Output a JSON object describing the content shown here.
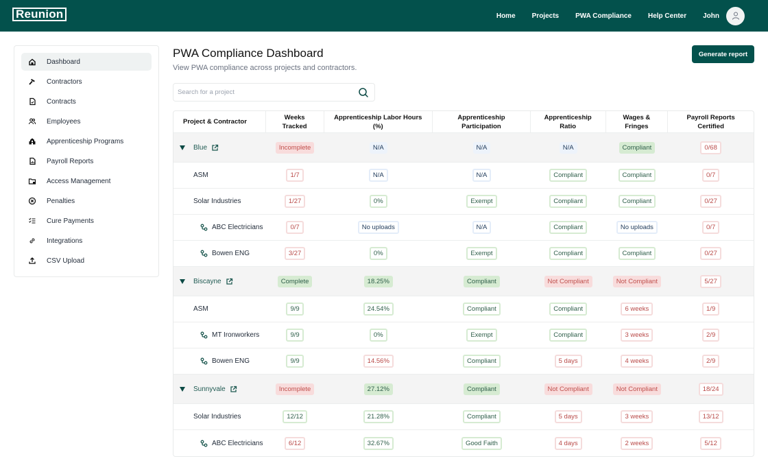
{
  "topbar": {
    "logo": "Reunion",
    "nav": [
      "Home",
      "Projects",
      "PWA Compliance",
      "Help Center"
    ],
    "user": "John",
    "brand_color": "#03514c"
  },
  "sidebar": {
    "items": [
      {
        "label": "Dashboard",
        "icon": "home-icon",
        "active": true
      },
      {
        "label": "Contractors",
        "icon": "hammer-icon"
      },
      {
        "label": "Contracts",
        "icon": "document-check-icon"
      },
      {
        "label": "Employees",
        "icon": "users-icon"
      },
      {
        "label": "Apprenticeship Programs",
        "icon": "building-icon"
      },
      {
        "label": "Payroll Reports",
        "icon": "report-icon"
      },
      {
        "label": "Access Management",
        "icon": "folder-lock-icon"
      },
      {
        "label": "Penalties",
        "icon": "circle-x-icon"
      },
      {
        "label": "Cure Payments",
        "icon": "checklist-icon"
      },
      {
        "label": "Integrations",
        "icon": "link-icon"
      },
      {
        "label": "CSV Upload",
        "icon": "upload-icon"
      }
    ]
  },
  "main": {
    "title": "PWA Compliance Dashboard",
    "subtitle": "View PWA compliance across projects and contractors.",
    "search_placeholder": "Search for a project",
    "generate_button": "Generate report"
  },
  "table": {
    "headers": [
      "Project & Contractor",
      "Weeks\nTracked",
      "Apprenticeship Labor Hours\n(%)",
      "Apprenticeship\nParticipation",
      "Apprenticeship\nRatio",
      "Wages &\nFringes",
      "Payroll Reports\nCertified"
    ],
    "rows": [
      {
        "level": 0,
        "name": "Blue",
        "cells": [
          {
            "v": "Incomplete",
            "s": "red-fill"
          },
          {
            "v": "N/A",
            "s": "blue-fill"
          },
          {
            "v": "N/A",
            "s": "blue-fill"
          },
          {
            "v": "N/A",
            "s": "blue-fill"
          },
          {
            "v": "Compliant",
            "s": "green-fill"
          },
          {
            "v": "0/68",
            "s": "redo-white"
          }
        ]
      },
      {
        "level": 1,
        "name": "ASM",
        "cells": [
          {
            "v": "1/7",
            "s": "red-out"
          },
          {
            "v": "N/A",
            "s": "blue-out"
          },
          {
            "v": "N/A",
            "s": "blue-out"
          },
          {
            "v": "Compliant",
            "s": "green-out"
          },
          {
            "v": "Compliant",
            "s": "green-out"
          },
          {
            "v": "0/7",
            "s": "red-out"
          }
        ]
      },
      {
        "level": 1,
        "name": "Solar Industries",
        "cells": [
          {
            "v": "1/27",
            "s": "red-out"
          },
          {
            "v": "0%",
            "s": "green-out"
          },
          {
            "v": "Exempt",
            "s": "green-out"
          },
          {
            "v": "Compliant",
            "s": "green-out"
          },
          {
            "v": "Compliant",
            "s": "green-out"
          },
          {
            "v": "0/27",
            "s": "red-out"
          }
        ]
      },
      {
        "level": 2,
        "name": "ABC Electricians",
        "cells": [
          {
            "v": "0/7",
            "s": "red-out"
          },
          {
            "v": "No uploads",
            "s": "blue-out"
          },
          {
            "v": "N/A",
            "s": "blue-out"
          },
          {
            "v": "Compliant",
            "s": "green-out"
          },
          {
            "v": "No uploads",
            "s": "blue-out"
          },
          {
            "v": "0/7",
            "s": "red-out"
          }
        ]
      },
      {
        "level": 2,
        "name": "Bowen ENG",
        "cells": [
          {
            "v": "3/27",
            "s": "red-out"
          },
          {
            "v": "0%",
            "s": "green-out"
          },
          {
            "v": "Exempt",
            "s": "green-out"
          },
          {
            "v": "Compliant",
            "s": "green-out"
          },
          {
            "v": "Compliant",
            "s": "green-out"
          },
          {
            "v": "0/27",
            "s": "red-out"
          }
        ]
      },
      {
        "level": 0,
        "name": "Biscayne",
        "cells": [
          {
            "v": "Complete",
            "s": "green-fill"
          },
          {
            "v": "18.25%",
            "s": "green-fill"
          },
          {
            "v": "Compliant",
            "s": "green-fill"
          },
          {
            "v": "Not Compliant",
            "s": "red-fill"
          },
          {
            "v": "Not Compliant",
            "s": "red-fill"
          },
          {
            "v": "5/27",
            "s": "redo-white"
          }
        ]
      },
      {
        "level": 1,
        "name": "ASM",
        "cells": [
          {
            "v": "9/9",
            "s": "green-out"
          },
          {
            "v": "24.54%",
            "s": "green-out"
          },
          {
            "v": "Compliant",
            "s": "green-out"
          },
          {
            "v": "Compliant",
            "s": "green-out"
          },
          {
            "v": "6 weeks",
            "s": "red-out"
          },
          {
            "v": "1/9",
            "s": "red-out"
          }
        ]
      },
      {
        "level": 2,
        "name": "MT Ironworkers",
        "cells": [
          {
            "v": "9/9",
            "s": "green-out"
          },
          {
            "v": "0%",
            "s": "green-out"
          },
          {
            "v": "Exempt",
            "s": "green-out"
          },
          {
            "v": "Compliant",
            "s": "green-out"
          },
          {
            "v": "3 weeks",
            "s": "red-out"
          },
          {
            "v": "2/9",
            "s": "red-out"
          }
        ]
      },
      {
        "level": 2,
        "name": "Bowen ENG",
        "cells": [
          {
            "v": "9/9",
            "s": "green-out"
          },
          {
            "v": "14.56%",
            "s": "red-out"
          },
          {
            "v": "Compliant",
            "s": "green-out"
          },
          {
            "v": "5 days",
            "s": "red-out"
          },
          {
            "v": "4 weeks",
            "s": "red-out"
          },
          {
            "v": "2/9",
            "s": "red-out"
          }
        ]
      },
      {
        "level": 0,
        "name": "Sunnyvale",
        "cells": [
          {
            "v": "Incomplete",
            "s": "red-fill"
          },
          {
            "v": "27.12%",
            "s": "green-fill"
          },
          {
            "v": "Compliant",
            "s": "green-fill"
          },
          {
            "v": "Not Compliant",
            "s": "red-fill"
          },
          {
            "v": "Not Compliant",
            "s": "red-fill"
          },
          {
            "v": "18/24",
            "s": "redo-white"
          }
        ]
      },
      {
        "level": 1,
        "name": "Solar Industries",
        "cells": [
          {
            "v": "12/12",
            "s": "green-out"
          },
          {
            "v": "21.28%",
            "s": "green-out"
          },
          {
            "v": "Compliant",
            "s": "green-out"
          },
          {
            "v": "5 days",
            "s": "red-out"
          },
          {
            "v": "3 weeks",
            "s": "red-out"
          },
          {
            "v": "13/12",
            "s": "red-out"
          }
        ]
      },
      {
        "level": 2,
        "name": "ABC Electricians",
        "cells": [
          {
            "v": "6/12",
            "s": "red-out"
          },
          {
            "v": "32.67%",
            "s": "green-out"
          },
          {
            "v": "Good Faith",
            "s": "green-out"
          },
          {
            "v": "4 days",
            "s": "red-out"
          },
          {
            "v": "2 weeks",
            "s": "red-out"
          },
          {
            "v": "5/12",
            "s": "red-out"
          }
        ]
      }
    ]
  }
}
